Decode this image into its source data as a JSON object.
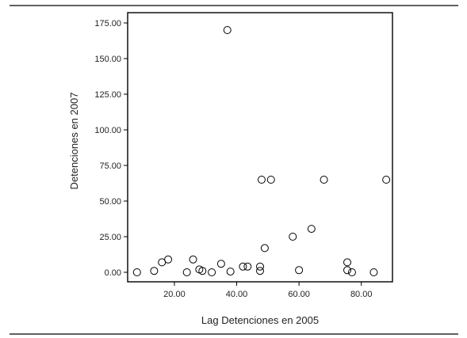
{
  "chart_data": {
    "type": "scatter",
    "xlabel": "Lag Detenciones en 2005",
    "ylabel": "Detenciones en 2007",
    "xlim": [
      5,
      90
    ],
    "ylim": [
      -7,
      175
    ],
    "xticks": [
      20,
      40,
      60,
      80
    ],
    "xtick_labels": [
      "20.00",
      "40.00",
      "60.00",
      "80.00"
    ],
    "yticks": [
      0,
      25,
      50,
      75,
      100,
      125,
      150,
      175
    ],
    "ytick_labels": [
      "0.00",
      "25.00",
      "50.00",
      "75.00",
      "100.00",
      "125.00",
      "150.00",
      "175.00"
    ],
    "grid": false,
    "legend": "none",
    "series": [
      {
        "points": [
          {
            "x": 8,
            "y": 0
          },
          {
            "x": 13.5,
            "y": 1
          },
          {
            "x": 16,
            "y": 7
          },
          {
            "x": 18,
            "y": 9
          },
          {
            "x": 24,
            "y": 0
          },
          {
            "x": 26,
            "y": 9
          },
          {
            "x": 28,
            "y": 2
          },
          {
            "x": 29,
            "y": 1
          },
          {
            "x": 32,
            "y": 0
          },
          {
            "x": 35,
            "y": 6
          },
          {
            "x": 37,
            "y": 170
          },
          {
            "x": 38,
            "y": 0.5
          },
          {
            "x": 42,
            "y": 4
          },
          {
            "x": 43.5,
            "y": 4
          },
          {
            "x": 47.5,
            "y": 4
          },
          {
            "x": 47.5,
            "y": 1
          },
          {
            "x": 48,
            "y": 65
          },
          {
            "x": 49,
            "y": 17
          },
          {
            "x": 51,
            "y": 65
          },
          {
            "x": 58,
            "y": 25
          },
          {
            "x": 60,
            "y": 1.5
          },
          {
            "x": 64,
            "y": 30.5
          },
          {
            "x": 68,
            "y": 65
          },
          {
            "x": 75.5,
            "y": 7
          },
          {
            "x": 75.5,
            "y": 1.5
          },
          {
            "x": 77,
            "y": 0
          },
          {
            "x": 84,
            "y": 0
          },
          {
            "x": 88,
            "y": 65
          }
        ]
      }
    ]
  }
}
